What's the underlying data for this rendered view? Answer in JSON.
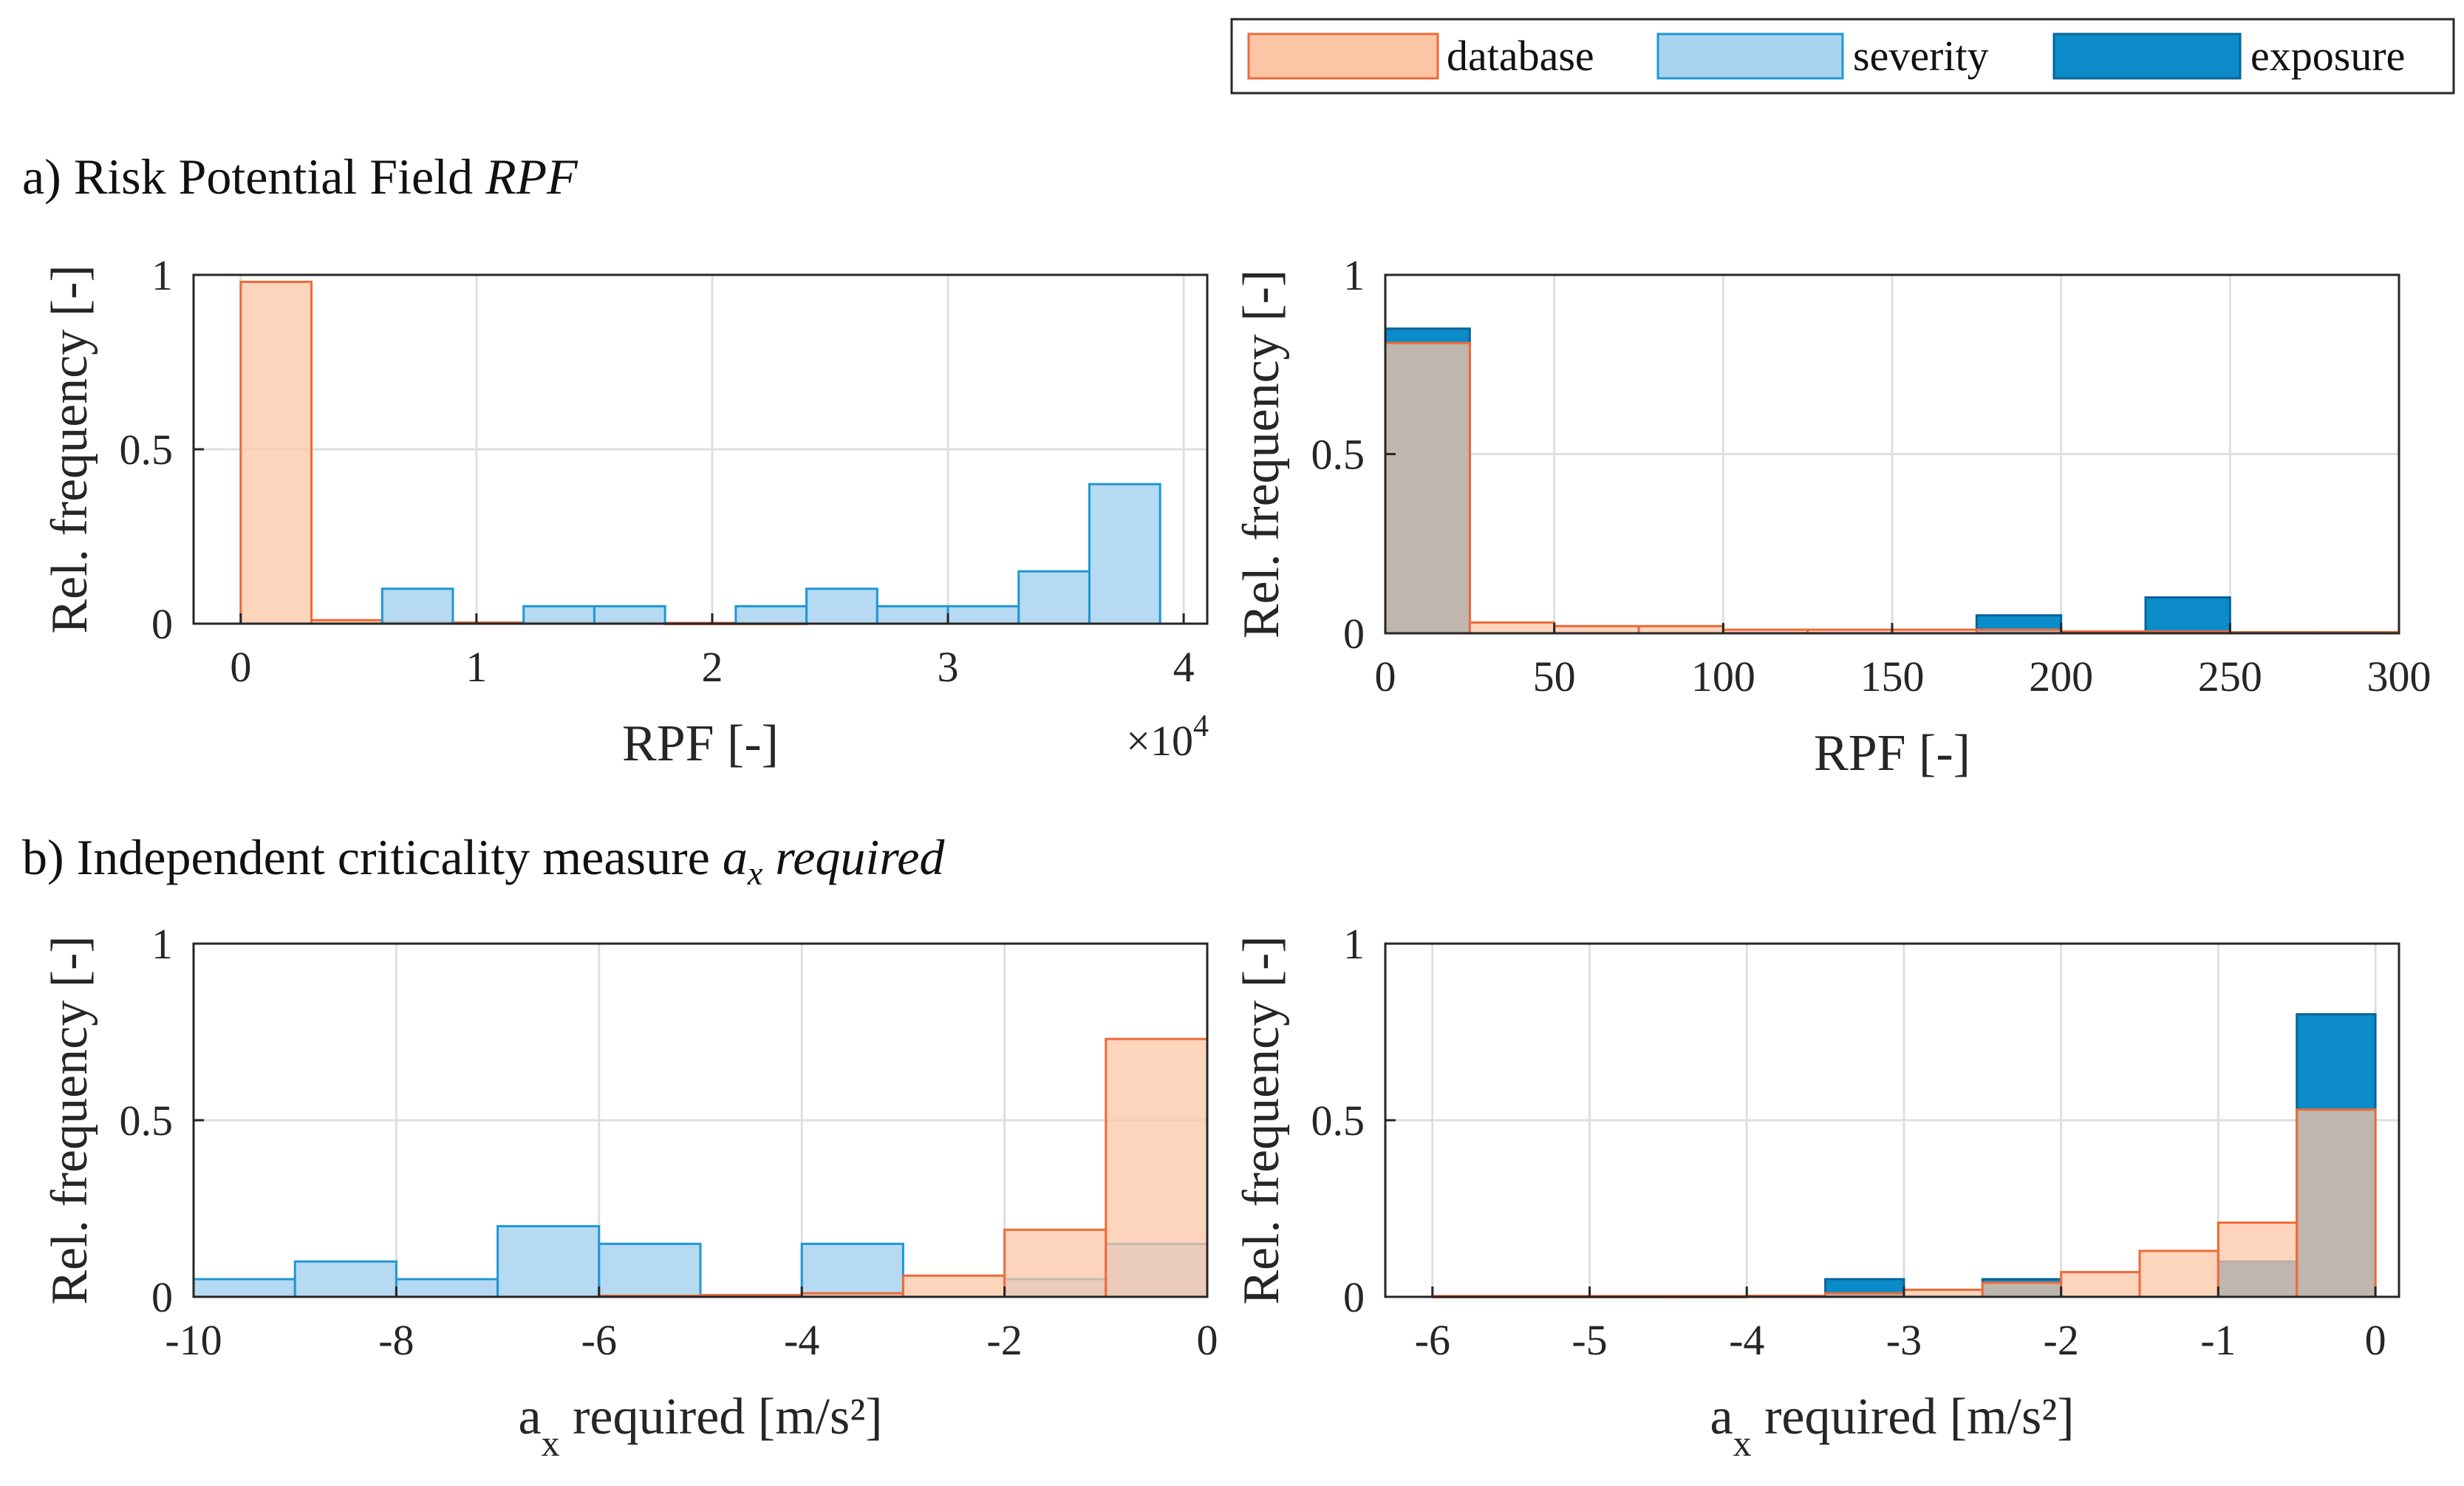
{
  "figure": {
    "section_a": {
      "prefix": "a) Risk Potential Field ",
      "italic": "RPF"
    },
    "section_b": {
      "prefix": "b) Independent criticality measure ",
      "a": "a",
      "x": "x",
      "suffix": " required"
    }
  },
  "legend": {
    "entries": [
      {
        "name": "database",
        "color": "#FCC5A6",
        "edge": "#EE6A38"
      },
      {
        "name": "severity",
        "color": "#A9D3EF",
        "edge": "#1F97D4"
      },
      {
        "name": "exposure",
        "color": "#0B8CC8",
        "edge": "#08639A"
      }
    ]
  },
  "chart_data": [
    {
      "id": "a_left",
      "type": "bar",
      "xlabel": "RPF [-]",
      "ylabel": "Rel. frequency [-]",
      "xlim": [
        -0.2,
        4.1
      ],
      "ylim": [
        0,
        1
      ],
      "xticks": [
        0,
        1,
        2,
        3,
        4
      ],
      "xtick_labels": [
        "0",
        "1",
        "2",
        "3",
        "4"
      ],
      "yticks": [
        0,
        0.5,
        1
      ],
      "ytick_labels": [
        "0",
        "0.5",
        "1"
      ],
      "exponent": {
        "times": "×",
        "base": "10",
        "power": "4"
      },
      "grid": true,
      "series": [
        {
          "name": "database",
          "bins": [
            [
              0,
              0.3,
              0.98
            ],
            [
              0.3,
              0.6,
              0.01
            ],
            [
              0.6,
              0.9,
              0.005
            ],
            [
              0.9,
              1.2,
              0.003
            ],
            [
              1.2,
              1.5,
              0.003
            ],
            [
              1.5,
              1.8,
              0.003
            ],
            [
              1.8,
              2.1,
              0.002
            ],
            [
              2.1,
              2.4,
              0.002
            ]
          ]
        },
        {
          "name": "severity",
          "bins": [
            [
              0.6,
              0.9,
              0.1
            ],
            [
              1.2,
              1.5,
              0.05
            ],
            [
              1.5,
              1.8,
              0.05
            ],
            [
              2.1,
              2.4,
              0.05
            ],
            [
              2.4,
              2.7,
              0.1
            ],
            [
              2.7,
              3.0,
              0.05
            ],
            [
              3.0,
              3.3,
              0.05
            ],
            [
              3.3,
              3.6,
              0.15
            ],
            [
              3.6,
              3.9,
              0.4
            ]
          ]
        }
      ]
    },
    {
      "id": "a_right",
      "type": "bar",
      "xlabel": "RPF [-]",
      "ylabel": "Rel. frequency [-]",
      "xlim": [
        0,
        300
      ],
      "ylim": [
        0,
        1
      ],
      "xticks": [
        0,
        50,
        100,
        150,
        200,
        250,
        300
      ],
      "xtick_labels": [
        "0",
        "50",
        "100",
        "150",
        "200",
        "250",
        "300"
      ],
      "yticks": [
        0,
        0.5,
        1
      ],
      "ytick_labels": [
        "0",
        "0.5",
        "1"
      ],
      "grid": true,
      "series": [
        {
          "name": "exposure",
          "bins": [
            [
              0,
              25,
              0.85
            ],
            [
              175,
              200,
              0.05
            ],
            [
              225,
              250,
              0.1
            ]
          ]
        },
        {
          "name": "database",
          "bins": [
            [
              0,
              25,
              0.81
            ],
            [
              25,
              50,
              0.03
            ],
            [
              50,
              75,
              0.02
            ],
            [
              75,
              100,
              0.02
            ],
            [
              100,
              125,
              0.01
            ],
            [
              125,
              150,
              0.01
            ],
            [
              150,
              175,
              0.01
            ],
            [
              175,
              200,
              0.01
            ],
            [
              200,
              225,
              0.005
            ],
            [
              225,
              250,
              0.005
            ],
            [
              250,
              275,
              0.003
            ],
            [
              275,
              300,
              0.003
            ]
          ]
        }
      ]
    },
    {
      "id": "b_left",
      "type": "bar",
      "xlabel_a": "a",
      "xlabel_x": "x",
      "xlabel_rest": " required [m/s²]",
      "ylabel": "Rel. frequency [-]",
      "xlim": [
        -10,
        0
      ],
      "ylim": [
        0,
        1
      ],
      "xticks": [
        -10,
        -8,
        -6,
        -4,
        -2,
        0
      ],
      "xtick_labels": [
        "-10",
        "-8",
        "-6",
        "-4",
        "-2",
        "0"
      ],
      "yticks": [
        0,
        0.5,
        1
      ],
      "ytick_labels": [
        "0",
        "0.5",
        "1"
      ],
      "grid": true,
      "series": [
        {
          "name": "severity",
          "bins": [
            [
              -10,
              -9,
              0.05
            ],
            [
              -9,
              -8,
              0.1
            ],
            [
              -8,
              -7,
              0.05
            ],
            [
              -7,
              -6,
              0.2
            ],
            [
              -6,
              -5,
              0.15
            ],
            [
              -4,
              -3,
              0.15
            ],
            [
              -2,
              -1,
              0.05
            ],
            [
              -1,
              0,
              0.15
            ]
          ]
        },
        {
          "name": "database",
          "bins": [
            [
              -6,
              -5,
              0.003
            ],
            [
              -5,
              -4,
              0.005
            ],
            [
              -4,
              -3,
              0.01
            ],
            [
              -3,
              -2,
              0.06
            ],
            [
              -2,
              -1,
              0.19
            ],
            [
              -1,
              0,
              0.73
            ]
          ]
        }
      ]
    },
    {
      "id": "b_right",
      "type": "bar",
      "xlabel_a": "a",
      "xlabel_x": "x",
      "xlabel_rest": " required [m/s²]",
      "ylabel": "Rel. frequency [-]",
      "xlim": [
        -6.3,
        0.15
      ],
      "ylim": [
        0,
        1
      ],
      "xticks": [
        -6,
        -5,
        -4,
        -3,
        -2,
        -1,
        0
      ],
      "xtick_labels": [
        "-6",
        "-5",
        "-4",
        "-3",
        "-2",
        "-1",
        "0"
      ],
      "yticks": [
        0,
        0.5,
        1
      ],
      "ytick_labels": [
        "0",
        "0.5",
        "1"
      ],
      "grid": true,
      "series": [
        {
          "name": "exposure",
          "bins": [
            [
              -3.5,
              -3.0,
              0.05
            ],
            [
              -2.5,
              -2.0,
              0.05
            ],
            [
              -1.0,
              -0.5,
              0.1
            ],
            [
              -0.5,
              0,
              0.8
            ]
          ]
        },
        {
          "name": "database",
          "bins": [
            [
              -6.0,
              -5.5,
              0.002
            ],
            [
              -5.5,
              -5.0,
              0.002
            ],
            [
              -5.0,
              -4.5,
              0.002
            ],
            [
              -4.5,
              -4.0,
              0.002
            ],
            [
              -4.0,
              -3.5,
              0.003
            ],
            [
              -3.5,
              -3.0,
              0.01
            ],
            [
              -3.0,
              -2.5,
              0.02
            ],
            [
              -2.5,
              -2.0,
              0.04
            ],
            [
              -2.0,
              -1.5,
              0.07
            ],
            [
              -1.5,
              -1.0,
              0.13
            ],
            [
              -1.0,
              -0.5,
              0.21
            ],
            [
              -0.5,
              0,
              0.53
            ]
          ]
        }
      ]
    }
  ]
}
